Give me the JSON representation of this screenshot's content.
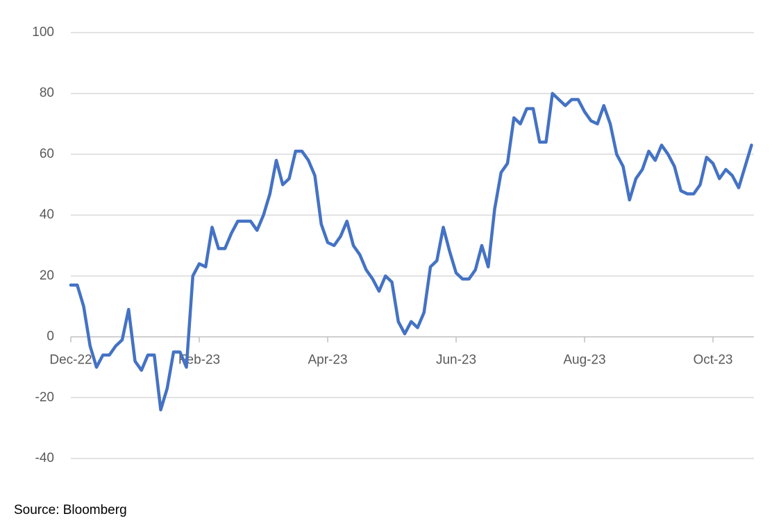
{
  "chart_data": {
    "type": "line",
    "categories": [
      "Dec-22",
      null,
      null,
      null,
      null,
      null,
      null,
      null,
      null,
      null,
      null,
      null,
      null,
      null,
      null,
      null,
      null,
      null,
      null,
      null,
      "Feb-23",
      null,
      null,
      null,
      null,
      null,
      null,
      null,
      null,
      null,
      null,
      null,
      null,
      null,
      null,
      null,
      null,
      null,
      null,
      null,
      "Apr-23",
      null,
      null,
      null,
      null,
      null,
      null,
      null,
      null,
      null,
      null,
      null,
      null,
      null,
      null,
      null,
      null,
      null,
      null,
      null,
      "Jun-23",
      null,
      null,
      null,
      null,
      null,
      null,
      null,
      null,
      null,
      null,
      null,
      null,
      null,
      null,
      null,
      null,
      null,
      null,
      null,
      "Aug-23",
      null,
      null,
      null,
      null,
      null,
      null,
      null,
      null,
      null,
      null,
      null,
      null,
      null,
      null,
      null,
      null,
      null,
      null,
      null,
      "Oct-23",
      null,
      null,
      null,
      null,
      null,
      null
    ],
    "series": [
      {
        "color": "#4472c4",
        "values": [
          17,
          17,
          10,
          -3,
          -10,
          -6,
          -6,
          -3,
          -1,
          9,
          -8,
          -11,
          -6,
          -6,
          -24,
          -17,
          -5,
          -5,
          -10,
          20,
          24,
          23,
          36,
          29,
          29,
          34,
          38,
          38,
          38,
          35,
          40,
          47,
          58,
          50,
          52,
          61,
          61,
          58,
          53,
          37,
          31,
          30,
          33,
          38,
          30,
          27,
          22,
          19,
          15,
          20,
          18,
          5,
          1,
          5,
          3,
          8,
          23,
          25,
          36,
          28,
          21,
          19,
          19,
          22,
          30,
          23,
          42,
          54,
          57,
          72,
          70,
          75,
          75,
          64,
          64,
          80,
          78,
          76,
          78,
          78,
          74,
          71,
          70,
          76,
          70,
          60,
          56,
          45,
          52,
          55,
          61,
          58,
          63,
          60,
          56,
          48,
          47,
          47,
          50,
          59,
          57,
          52,
          55,
          53,
          49,
          56,
          63
        ]
      }
    ],
    "ylim": [
      -40,
      100
    ],
    "yticks": [
      -40,
      -20,
      0,
      20,
      40,
      60,
      80,
      100
    ],
    "grid": true,
    "source": "Source: Bloomberg"
  }
}
